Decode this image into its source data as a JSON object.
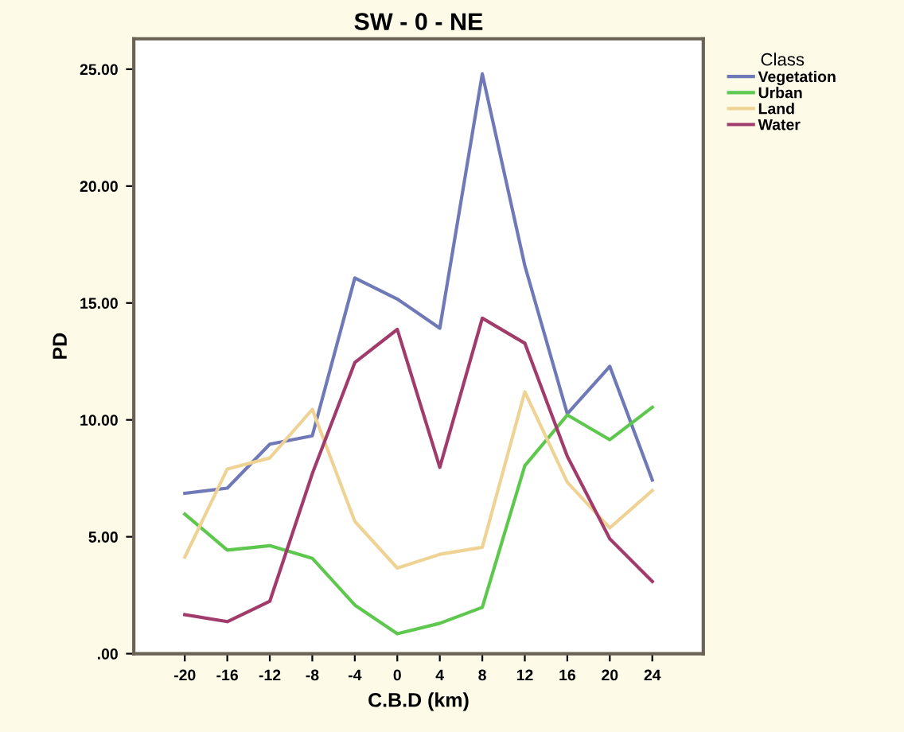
{
  "chart_data": {
    "type": "line",
    "title": "SW - 0 - NE",
    "xlabel": "C.B.D (km)",
    "ylabel": "PD",
    "legend_title": "Class",
    "categories": [
      "-20",
      "-16",
      "-12",
      "-8",
      "-4",
      "0",
      "4",
      "8",
      "12",
      "16",
      "20",
      "24"
    ],
    "series": [
      {
        "name": "Vegetation",
        "color": "#6f79b8",
        "values": [
          6.86,
          7.08,
          8.96,
          9.32,
          16.07,
          15.17,
          13.92,
          24.8,
          16.6,
          10.26,
          12.29,
          7.43
        ]
      },
      {
        "name": "Urban",
        "color": "#5ec84e",
        "values": [
          5.97,
          4.43,
          4.62,
          4.08,
          2.08,
          0.85,
          1.3,
          1.98,
          8.04,
          10.21,
          9.15,
          10.54
        ]
      },
      {
        "name": "Land",
        "color": "#efd394",
        "values": [
          4.13,
          7.9,
          8.37,
          10.45,
          5.66,
          3.66,
          4.25,
          4.55,
          11.2,
          7.33,
          5.38,
          6.98
        ]
      },
      {
        "name": "Water",
        "color": "#a13b6c",
        "values": [
          1.67,
          1.37,
          2.24,
          7.7,
          12.45,
          13.87,
          7.97,
          14.35,
          13.28,
          8.44,
          4.91,
          3.09
        ]
      }
    ],
    "ylim": [
      0,
      26.3
    ],
    "yticks": [
      {
        "value": 0,
        "label": ".00"
      },
      {
        "value": 5,
        "label": "5.00"
      },
      {
        "value": 10,
        "label": "10.00"
      },
      {
        "value": 15,
        "label": "15.00"
      },
      {
        "value": 20,
        "label": "20.00"
      },
      {
        "value": 25,
        "label": "25.00"
      }
    ],
    "grid": false,
    "legend": "top right",
    "marker": "none",
    "line_style": "solid"
  }
}
